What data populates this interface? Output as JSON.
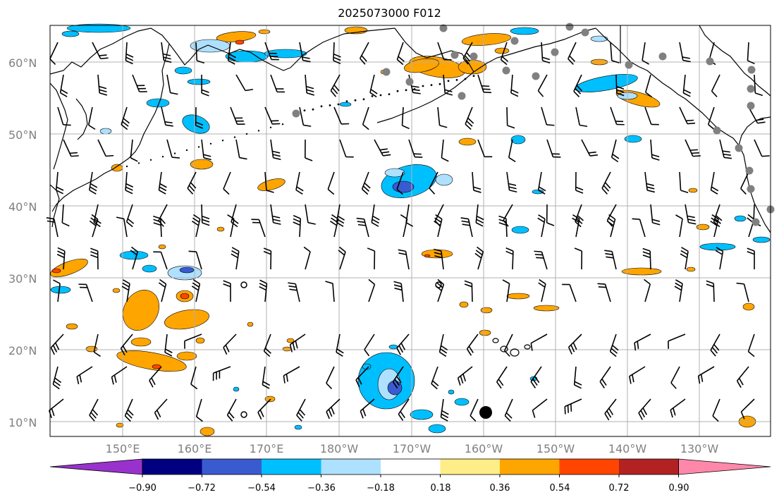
{
  "title": "2025073000 F012",
  "latitude_labels": [
    "60°N",
    "50°N",
    "40°N",
    "30°N",
    "20°N",
    "10°N"
  ],
  "longitude_labels": [
    "150°E",
    "160°E",
    "170°E",
    "180°W",
    "170°W",
    "160°W",
    "150°W",
    "140°W",
    "130°W"
  ],
  "colorbar": {
    "tick_labels": [
      "−0.90",
      "−0.72",
      "−0.54",
      "−0.36",
      "−0.18",
      "0.18",
      "0.36",
      "0.54",
      "0.72",
      "0.90"
    ],
    "under_color": "#9932cc",
    "over_color": "#ff88aa",
    "colors": [
      "#000080",
      "#3a5bd0",
      "#00bfff",
      "#aee0ff",
      "#ffffff",
      "#ffee88",
      "#ffa500",
      "#ff4500",
      "#b22222"
    ]
  },
  "colors": {
    "grid": "#b0b0b0",
    "coast": "#000000",
    "barb": "#000000",
    "station_dot": "#808080"
  }
}
